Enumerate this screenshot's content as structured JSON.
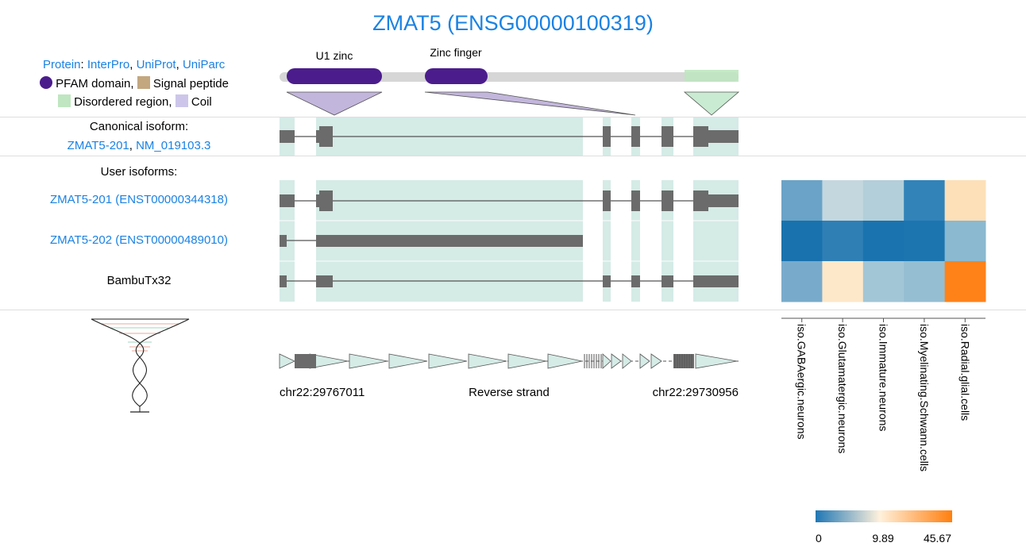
{
  "title": "ZMAT5 (ENSG00000100319)",
  "protein_legend": {
    "protein_label": "Protein",
    "links": [
      "InterPro",
      "UniProt",
      "UniParc"
    ],
    "pfam_label": "PFAM domain,",
    "signal_label": "Signal peptide",
    "disordered_label": "Disordered region,",
    "coil_label": "Coil"
  },
  "domains": [
    {
      "name": "U1 zinc"
    },
    {
      "name": "Zinc finger"
    }
  ],
  "canonical": {
    "header": "Canonical isoform:",
    "transcript": "ZMAT5-201",
    "refseq": "NM_019103.3"
  },
  "user_isoforms": {
    "header": "User isoforms:",
    "rows": [
      {
        "label": "ZMAT5-201 (ENST00000344318)",
        "linked": true
      },
      {
        "label": "ZMAT5-202 (ENST00000489010)",
        "linked": true
      },
      {
        "label": "BambuTx32",
        "linked": false
      }
    ]
  },
  "genome": {
    "start": "chr22:29767011",
    "strand": "Reverse strand",
    "end": "chr22:29730956"
  },
  "heatmap": {
    "columns": [
      "iso.GABAergic.neurons",
      "iso.Glutamatergic.neurons",
      "iso.Immature.neurons",
      "iso.Myelinating.Schwann.cells",
      "iso.Radial.glial.cells"
    ],
    "cell_colors": [
      [
        "#6aa3c7",
        "#c4d7df",
        "#b3cfd9",
        "#3183b8",
        "#fde0b8"
      ],
      [
        "#1972ad",
        "#2f7fb5",
        "#1a73ae",
        "#1c75af",
        "#8ab9d0"
      ],
      [
        "#78abcb",
        "#fde8c9",
        "#a2c6d6",
        "#95bed3",
        "#ff8219"
      ]
    ],
    "colorbar": {
      "colors": [
        "#1f77b4",
        "#fff1dc",
        "#ff7f0e"
      ],
      "ticks": [
        "0",
        "9.89",
        "45.67"
      ]
    }
  },
  "colors": {
    "link": "#1a82e3",
    "pfam": "#4b1d8c",
    "signal_peptide": "#c2a77f",
    "disordered": "#bfe6c0",
    "coil": "#cdc6ea",
    "exon_highlight": "#d5ebe6",
    "exon": "#6b6b6b"
  }
}
